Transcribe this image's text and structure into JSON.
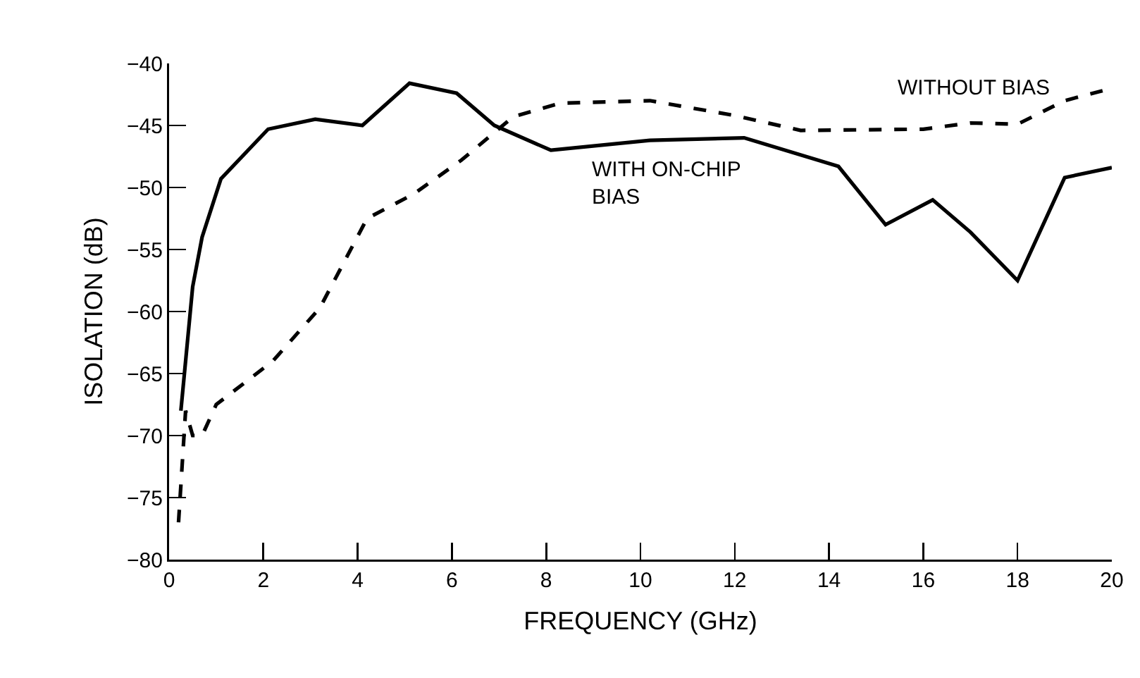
{
  "chart_data": {
    "type": "line",
    "xlabel": "FREQUENCY (GHz)",
    "ylabel": "ISOLATION (dB)",
    "xlim": [
      0,
      20
    ],
    "xticks": [
      0,
      2,
      4,
      6,
      8,
      10,
      12,
      14,
      16,
      18,
      20
    ],
    "ylim": [
      -80,
      -40
    ],
    "yticks": [
      -80,
      -75,
      -70,
      -65,
      -60,
      -55,
      -50,
      -45,
      -40
    ],
    "grid": false,
    "legend": false,
    "marker": "none",
    "series": [
      {
        "name": "WITHOUT BIAS",
        "color": "#000000",
        "line_style": "dashed",
        "x": [
          0.2,
          0.35,
          0.5,
          0.7,
          1.0,
          2.2,
          3.2,
          4.2,
          5.2,
          6.2,
          7.3,
          8.3,
          10.2,
          12.0,
          13.4,
          16.0,
          17.0,
          18.0,
          19.0,
          20.0
        ],
        "values": [
          -77,
          -68,
          -70,
          -70,
          -67.5,
          -64,
          -59.7,
          -52.5,
          -50.5,
          -47.8,
          -44.3,
          -43.2,
          -43,
          -44.2,
          -45.4,
          -45.3,
          -44.8,
          -44.9,
          -43,
          -42
        ]
      },
      {
        "name": "WITH ON-CHIP BIAS",
        "color": "#000000",
        "line_style": "solid",
        "x": [
          0.25,
          0.5,
          0.7,
          1.1,
          2.1,
          3.1,
          4.1,
          5.1,
          6.1,
          6.9,
          8.1,
          10.2,
          12.2,
          14.2,
          15.2,
          16.2,
          17.0,
          18.0,
          19.0,
          20.0
        ],
        "values": [
          -68,
          -58,
          -54,
          -49.3,
          -45.3,
          -44.5,
          -45,
          -41.6,
          -42.4,
          -45,
          -47,
          -46.2,
          -46,
          -48.3,
          -53,
          -51,
          -53.6,
          -57.5,
          -49.2,
          -48.4
        ]
      }
    ]
  }
}
